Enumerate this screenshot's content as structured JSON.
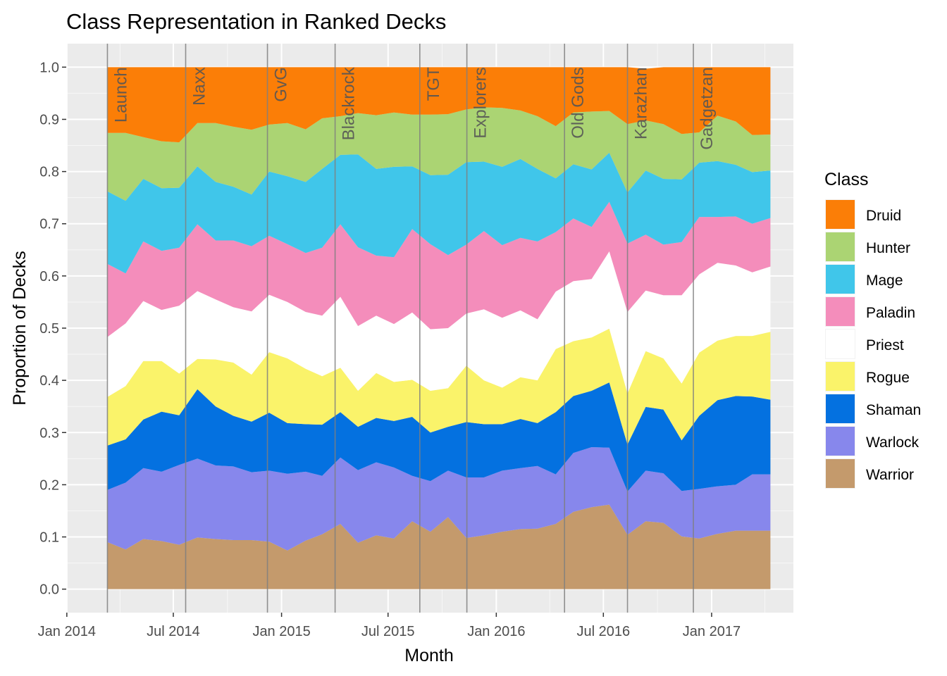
{
  "chart_data": {
    "type": "area",
    "stacked": true,
    "title": "Class Representation in Ranked Decks",
    "xlabel": "Month",
    "ylabel": "Proportion of Decks",
    "legend_title": "Class",
    "legend_position": "right",
    "grid": true,
    "ylim": [
      -0.045,
      1.045
    ],
    "xlim": [
      "2013-12-31",
      "2017-05-20"
    ],
    "y_ticks": [
      "0.0",
      "0.1",
      "0.2",
      "0.3",
      "0.4",
      "0.5",
      "0.6",
      "0.7",
      "0.8",
      "0.9",
      "1.0"
    ],
    "x_ticks": [
      {
        "label": "Jan 2014",
        "date": "2014-01-01"
      },
      {
        "label": "Jul 2014",
        "date": "2014-07-01"
      },
      {
        "label": "Jan 2015",
        "date": "2015-01-01"
      },
      {
        "label": "Jul 2015",
        "date": "2015-07-01"
      },
      {
        "label": "Jan 2016",
        "date": "2016-01-01"
      },
      {
        "label": "Jul 2016",
        "date": "2016-07-01"
      },
      {
        "label": "Jan 2017",
        "date": "2017-01-01"
      }
    ],
    "x": [
      "2014-03-11",
      "2014-04-11",
      "2014-05-11",
      "2014-06-11",
      "2014-07-11",
      "2014-08-11",
      "2014-09-11",
      "2014-10-11",
      "2014-11-11",
      "2014-12-11",
      "2015-01-11",
      "2015-02-11",
      "2015-03-11",
      "2015-04-11",
      "2015-05-11",
      "2015-06-11",
      "2015-07-11",
      "2015-08-11",
      "2015-09-11",
      "2015-10-11",
      "2015-11-11",
      "2015-12-11",
      "2016-01-11",
      "2016-02-11",
      "2016-03-11",
      "2016-04-11",
      "2016-05-11",
      "2016-06-11",
      "2016-07-11",
      "2016-08-11",
      "2016-09-11",
      "2016-10-11",
      "2016-11-11",
      "2016-12-11",
      "2017-01-11",
      "2017-02-11",
      "2017-03-11",
      "2017-04-11"
    ],
    "series": [
      {
        "name": "Warrior",
        "color": "#c49a6c",
        "values": [
          0.09,
          0.076,
          0.096,
          0.092,
          0.085,
          0.099,
          0.096,
          0.094,
          0.094,
          0.091,
          0.074,
          0.093,
          0.105,
          0.125,
          0.089,
          0.103,
          0.097,
          0.13,
          0.11,
          0.138,
          0.098,
          0.103,
          0.11,
          0.115,
          0.116,
          0.125,
          0.148,
          0.157,
          0.162,
          0.104,
          0.13,
          0.127,
          0.101,
          0.097,
          0.106,
          0.112,
          0.112,
          0.112
        ]
      },
      {
        "name": "Warlock",
        "color": "#8787ec",
        "values": [
          0.1,
          0.128,
          0.136,
          0.133,
          0.153,
          0.151,
          0.141,
          0.141,
          0.13,
          0.136,
          0.147,
          0.132,
          0.112,
          0.127,
          0.139,
          0.14,
          0.136,
          0.087,
          0.097,
          0.089,
          0.116,
          0.111,
          0.117,
          0.117,
          0.12,
          0.095,
          0.113,
          0.115,
          0.109,
          0.083,
          0.097,
          0.095,
          0.087,
          0.095,
          0.091,
          0.088,
          0.108,
          0.108
        ]
      },
      {
        "name": "Shaman",
        "color": "#0471e0",
        "values": [
          0.085,
          0.083,
          0.093,
          0.115,
          0.095,
          0.133,
          0.113,
          0.097,
          0.097,
          0.111,
          0.097,
          0.091,
          0.098,
          0.087,
          0.083,
          0.085,
          0.089,
          0.113,
          0.093,
          0.084,
          0.106,
          0.102,
          0.089,
          0.094,
          0.082,
          0.119,
          0.109,
          0.108,
          0.125,
          0.09,
          0.122,
          0.122,
          0.097,
          0.14,
          0.165,
          0.17,
          0.149,
          0.143
        ]
      },
      {
        "name": "Rogue",
        "color": "#faf36a",
        "values": [
          0.093,
          0.102,
          0.112,
          0.097,
          0.08,
          0.058,
          0.09,
          0.102,
          0.09,
          0.116,
          0.124,
          0.106,
          0.093,
          0.085,
          0.069,
          0.086,
          0.075,
          0.071,
          0.08,
          0.074,
          0.108,
          0.084,
          0.07,
          0.08,
          0.082,
          0.121,
          0.105,
          0.102,
          0.103,
          0.098,
          0.107,
          0.098,
          0.109,
          0.121,
          0.114,
          0.115,
          0.116,
          0.13
        ]
      },
      {
        "name": "Priest",
        "color": "#ffffff",
        "values": [
          0.115,
          0.12,
          0.115,
          0.098,
          0.13,
          0.13,
          0.115,
          0.106,
          0.121,
          0.11,
          0.108,
          0.109,
          0.116,
          0.136,
          0.124,
          0.11,
          0.111,
          0.129,
          0.118,
          0.115,
          0.1,
          0.136,
          0.134,
          0.128,
          0.117,
          0.11,
          0.115,
          0.112,
          0.148,
          0.156,
          0.116,
          0.121,
          0.169,
          0.15,
          0.149,
          0.135,
          0.122,
          0.125
        ]
      },
      {
        "name": "Paladin",
        "color": "#f48dbb",
        "values": [
          0.14,
          0.096,
          0.114,
          0.113,
          0.111,
          0.128,
          0.113,
          0.128,
          0.125,
          0.113,
          0.111,
          0.113,
          0.13,
          0.139,
          0.151,
          0.115,
          0.128,
          0.16,
          0.163,
          0.14,
          0.132,
          0.15,
          0.139,
          0.139,
          0.149,
          0.114,
          0.12,
          0.1,
          0.095,
          0.131,
          0.107,
          0.097,
          0.102,
          0.11,
          0.088,
          0.094,
          0.093,
          0.093
        ]
      },
      {
        "name": "Mage",
        "color": "#40c6ea",
        "values": [
          0.139,
          0.139,
          0.12,
          0.12,
          0.115,
          0.111,
          0.112,
          0.103,
          0.099,
          0.123,
          0.13,
          0.136,
          0.151,
          0.133,
          0.178,
          0.166,
          0.173,
          0.12,
          0.132,
          0.154,
          0.158,
          0.133,
          0.15,
          0.151,
          0.139,
          0.103,
          0.104,
          0.11,
          0.094,
          0.098,
          0.123,
          0.126,
          0.12,
          0.104,
          0.107,
          0.099,
          0.099,
          0.091
        ]
      },
      {
        "name": "Hunter",
        "color": "#abd473",
        "values": [
          0.112,
          0.13,
          0.08,
          0.09,
          0.087,
          0.083,
          0.113,
          0.115,
          0.124,
          0.09,
          0.102,
          0.101,
          0.097,
          0.074,
          0.079,
          0.103,
          0.104,
          0.099,
          0.116,
          0.116,
          0.101,
          0.104,
          0.113,
          0.093,
          0.101,
          0.1,
          0.099,
          0.111,
          0.08,
          0.131,
          0.096,
          0.105,
          0.087,
          0.058,
          0.087,
          0.083,
          0.071,
          0.069
        ]
      },
      {
        "name": "Druid",
        "color": "#fb7e07",
        "values": [
          0.126,
          0.126,
          0.134,
          0.142,
          0.144,
          0.107,
          0.107,
          0.114,
          0.12,
          0.11,
          0.107,
          0.119,
          0.098,
          0.094,
          0.088,
          0.092,
          0.087,
          0.091,
          0.091,
          0.09,
          0.081,
          0.077,
          0.078,
          0.083,
          0.094,
          0.113,
          0.087,
          0.085,
          0.084,
          0.109,
          0.099,
          0.109,
          0.128,
          0.125,
          0.093,
          0.104,
          0.13,
          0.129
        ]
      }
    ],
    "events": [
      {
        "label": "Launch",
        "date": "2014-03-11"
      },
      {
        "label": "Naxx",
        "date": "2014-07-22"
      },
      {
        "label": "GvG",
        "date": "2014-12-08"
      },
      {
        "label": "Blackrock",
        "date": "2015-04-02"
      },
      {
        "label": "TGT",
        "date": "2015-08-24"
      },
      {
        "label": "Explorers",
        "date": "2015-11-12"
      },
      {
        "label": "Old Gods",
        "date": "2016-04-26"
      },
      {
        "label": "Karazhan",
        "date": "2016-08-11"
      },
      {
        "label": "Gadgetzan",
        "date": "2016-12-01"
      }
    ],
    "colors": {
      "panel_background": "#ebebeb",
      "grid_major": "#ffffff",
      "event_line": "#7f7f7f",
      "event_label": "#555555"
    }
  }
}
